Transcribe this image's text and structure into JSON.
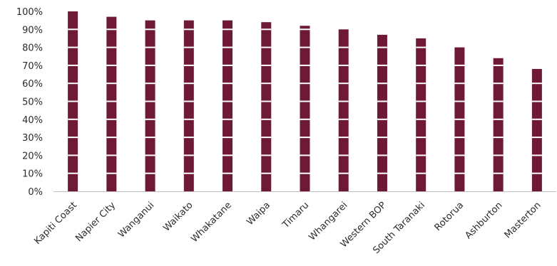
{
  "chart_data": {
    "type": "bar",
    "categories": [
      "Kapiti Coast",
      "Napier City",
      "Wanganui",
      "Waikato",
      "Whakatane",
      "Waipa",
      "Timaru",
      "Whangarei",
      "Western BOP",
      "South Taranaki",
      "Rotorua",
      "Ashburton",
      "Masterton"
    ],
    "values": [
      100,
      97,
      95,
      95,
      95,
      94,
      92,
      90,
      87,
      85,
      80,
      74,
      68
    ],
    "ylim": [
      0,
      100
    ],
    "yticks": [
      0,
      10,
      20,
      30,
      40,
      50,
      60,
      70,
      80,
      90,
      100
    ],
    "ytick_labels": [
      "0%",
      "10%",
      "20%",
      "30%",
      "40%",
      "50%",
      "60%",
      "70%",
      "80%",
      "90%",
      "100%"
    ],
    "title": "",
    "xlabel": "",
    "ylabel": "",
    "bar_color": "#6e1a37",
    "axis_color": "#bfbfbf",
    "grid": false,
    "legend": "none"
  }
}
